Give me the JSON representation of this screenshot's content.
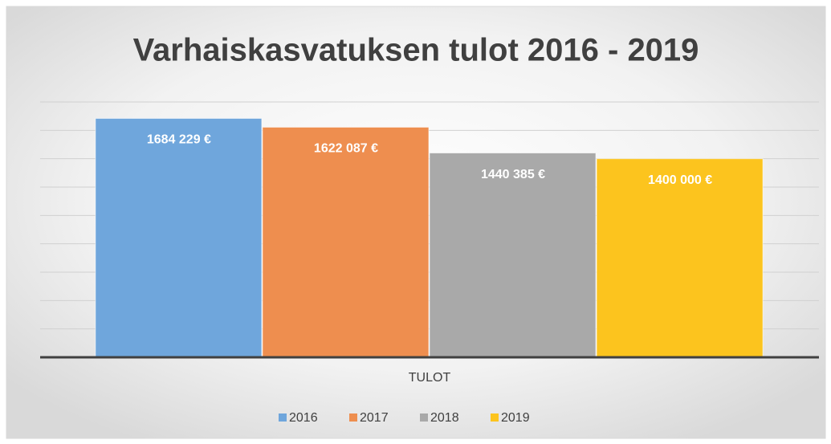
{
  "chart_data": {
    "type": "bar",
    "title": "Varhaiskasvatuksen tulot 2016 - 2019",
    "categories": [
      "TULOT"
    ],
    "series": [
      {
        "name": "2016",
        "color": "#6fa6dc",
        "values": [
          1684229
        ],
        "value_labels": [
          "1684 229 €"
        ]
      },
      {
        "name": "2017",
        "color": "#ee8e4f",
        "values": [
          1622087
        ],
        "value_labels": [
          "1622 087 €"
        ]
      },
      {
        "name": "2018",
        "color": "#a9a9a9",
        "values": [
          1440385
        ],
        "value_labels": [
          "1440 385 €"
        ]
      },
      {
        "name": "2019",
        "color": "#fcc41e",
        "values": [
          1400000
        ],
        "value_labels": [
          "1400 000 €"
        ]
      }
    ],
    "ylim": [
      0,
      1800000
    ],
    "yticks": [
      0,
      200000,
      400000,
      600000,
      800000,
      1000000,
      1200000,
      1400000,
      1600000,
      1800000
    ],
    "grid": true,
    "legend": "bottom"
  }
}
